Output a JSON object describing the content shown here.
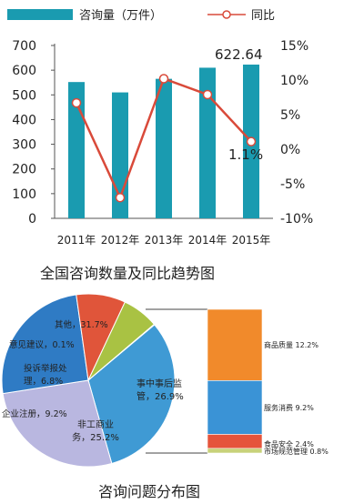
{
  "chart_data": [
    {
      "type": "bar+line",
      "categories": [
        "2011年",
        "2012年",
        "2013年",
        "2014年",
        "2015年"
      ],
      "series": [
        {
          "name": "咨询量（万件）",
          "type": "bar",
          "axis": "left",
          "values": [
            552,
            510,
            565,
            610,
            622.64
          ],
          "color": "#1a9bb0"
        },
        {
          "name": "同比",
          "type": "line",
          "axis": "right",
          "values": [
            6.7,
            -7.0,
            10.2,
            7.9,
            1.1
          ],
          "color": "#d94a3a"
        }
      ],
      "annotations": [
        "622.64",
        "1.1%"
      ],
      "y_left": {
        "ticks": [
          "0",
          "100",
          "200",
          "300",
          "400",
          "500",
          "600",
          "700"
        ],
        "ylim": [
          0,
          700
        ]
      },
      "y_right": {
        "ticks": [
          "15%",
          "10%",
          "5%",
          "0%",
          "-5%",
          "-10%"
        ],
        "ylim": [
          -10,
          15
        ]
      },
      "title": "全国咨询数量及同比趋势图",
      "legend": "top"
    },
    {
      "type": "pie",
      "title": "咨询问题分布图",
      "slices": [
        {
          "label": "其他，31.7%",
          "value": 31.7,
          "color": "#3f9ad4"
        },
        {
          "label": "事中事后监管，26.9%",
          "value": 26.9,
          "color": "#b9b7e0"
        },
        {
          "label": "非工商业务，25.2%",
          "value": 25.2,
          "color": "#2f7bc4"
        },
        {
          "label": "企业注册，9.2%",
          "value": 9.2,
          "color": "#e0553a"
        },
        {
          "label": "投诉举报处理，6.8%",
          "value": 6.8,
          "color": "#a9c243"
        },
        {
          "label": "意见建议，0.1%",
          "value": 0.1,
          "color": "#8b6fb2"
        }
      ],
      "breakdown": {
        "of": "事中事后监管",
        "items": [
          {
            "label": "商品质量 12.2%",
            "value": 12.2,
            "color": "#f18a2b"
          },
          {
            "label": "服务消费 9.2%",
            "value": 9.2,
            "color": "#3a93d6"
          },
          {
            "label": "食品安全 2.4%",
            "value": 2.4,
            "color": "#e5543b"
          },
          {
            "label": "市场规范管理 0.8%",
            "value": 0.8,
            "color": "#c8d27a"
          }
        ]
      }
    }
  ]
}
